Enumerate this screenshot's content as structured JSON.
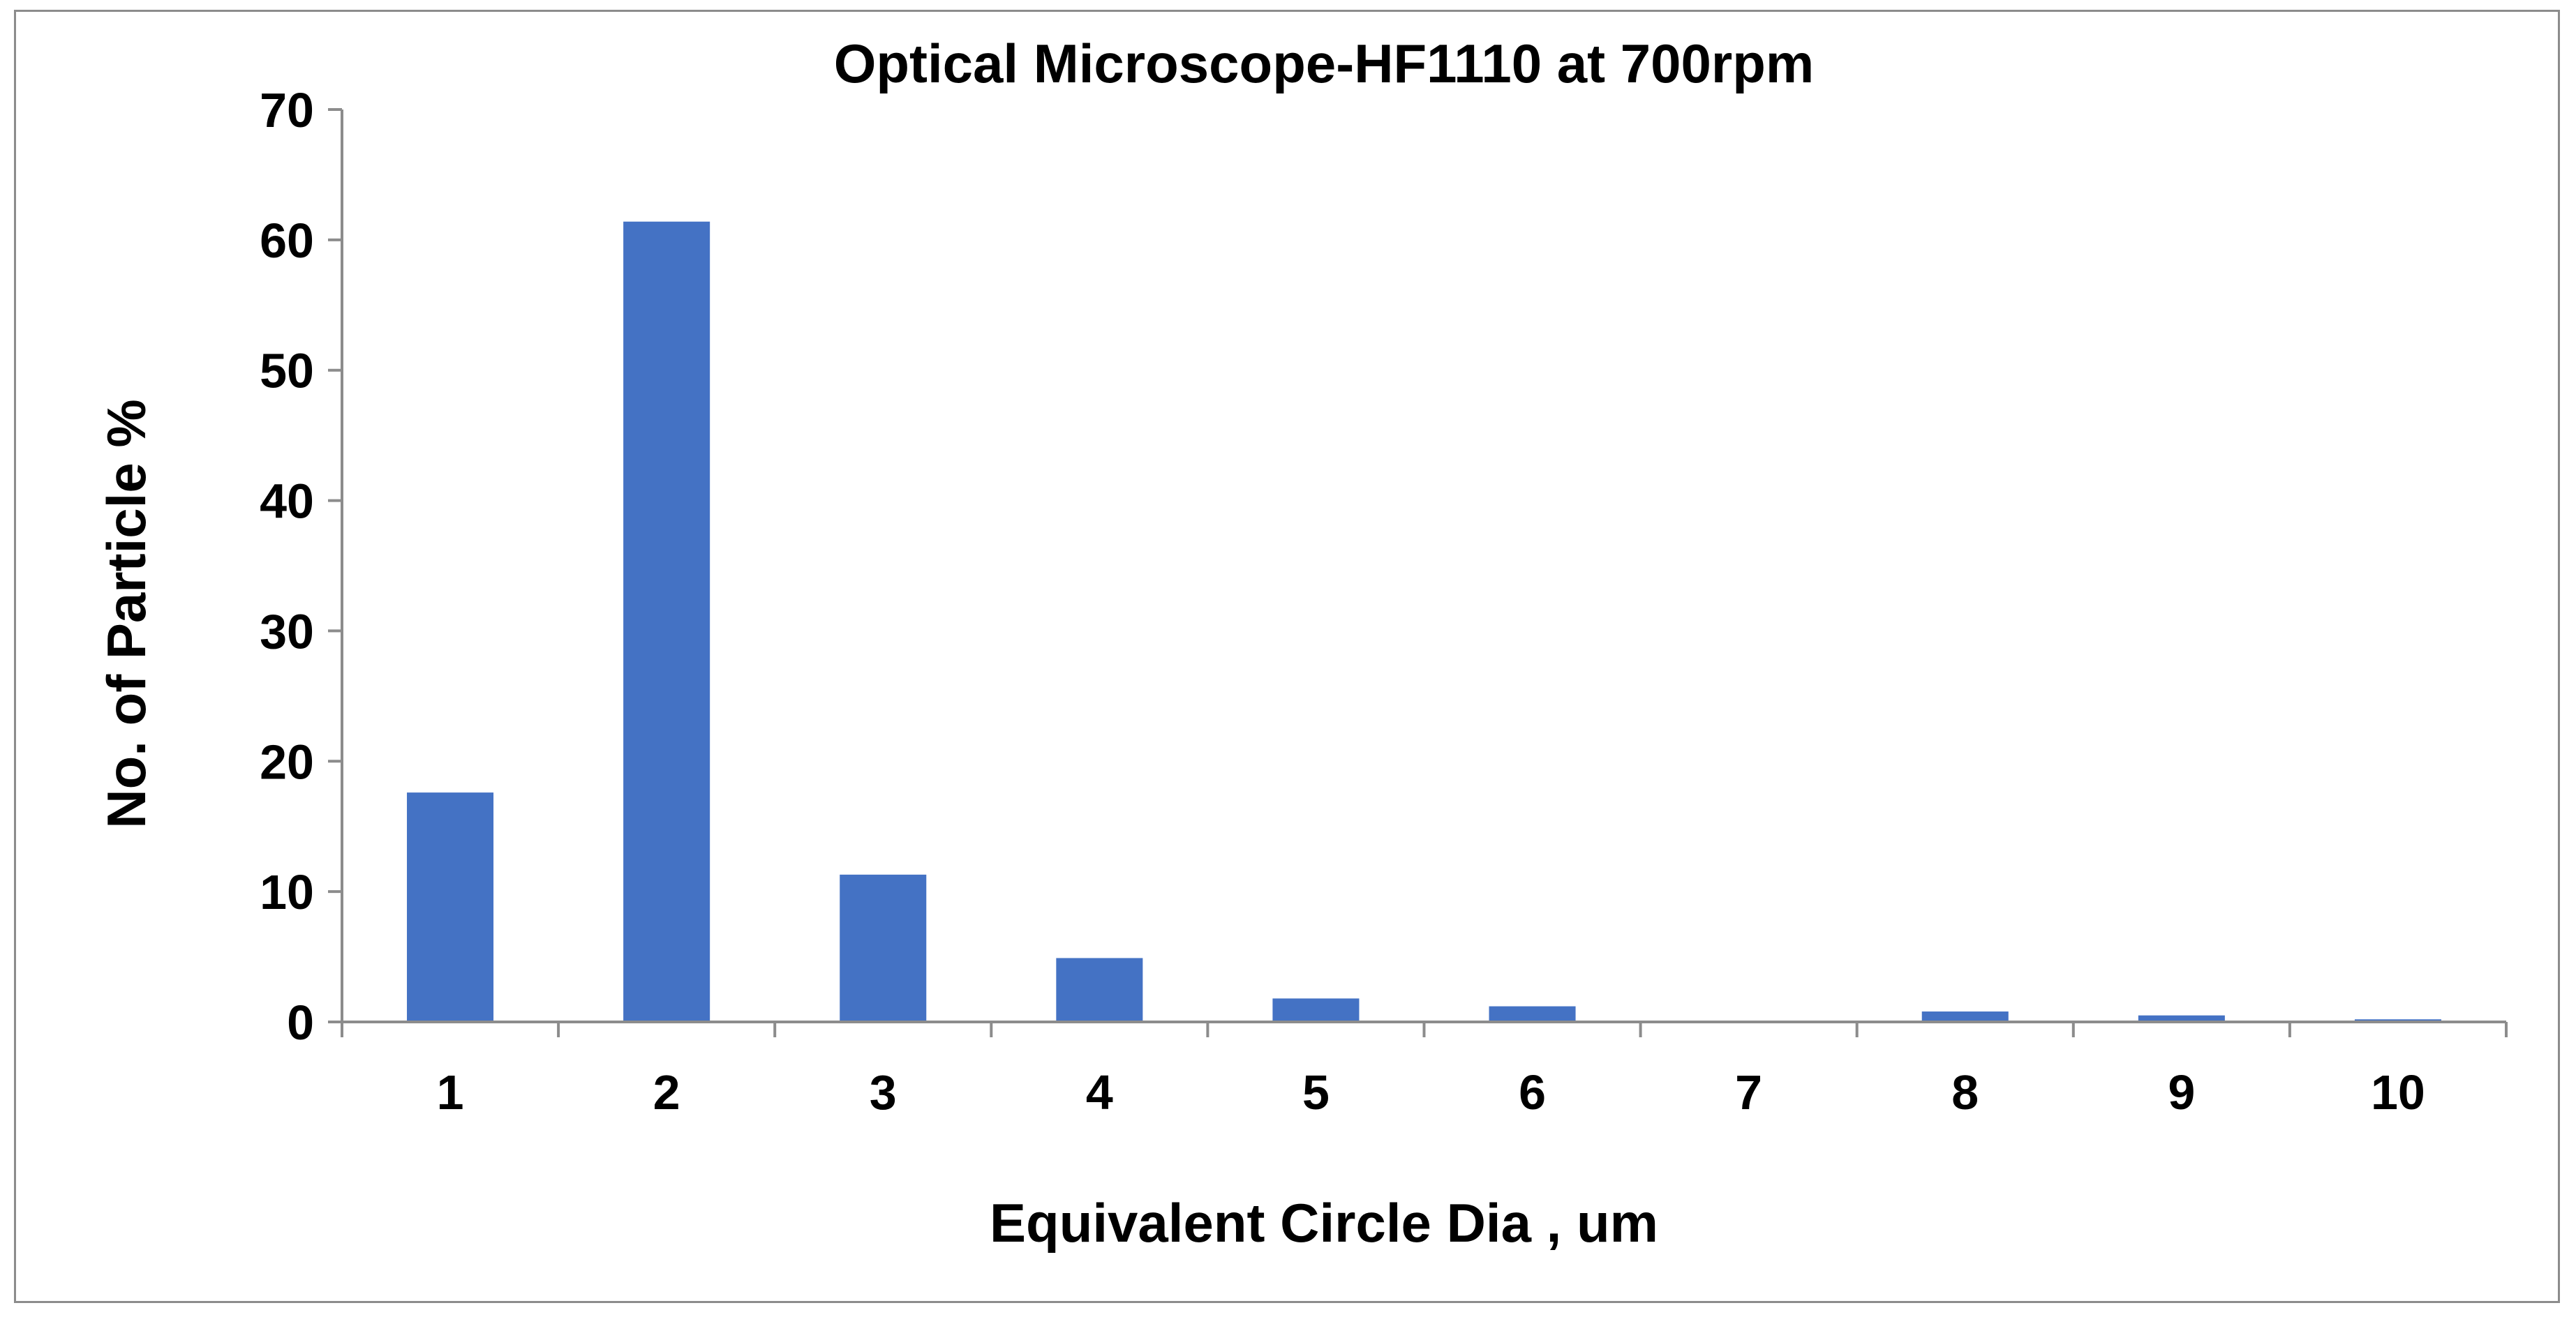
{
  "chart_data": {
    "type": "bar",
    "title": "Optical Microscope-HF1110 at 700rpm",
    "xlabel": "Equivalent Circle Dia , um",
    "ylabel": "No. of Particle %",
    "categories": [
      "1",
      "2",
      "3",
      "4",
      "5",
      "6",
      "7",
      "8",
      "9",
      "10"
    ],
    "values": [
      17.6,
      61.4,
      11.3,
      4.9,
      1.8,
      1.2,
      0,
      0.8,
      0.5,
      0.2
    ],
    "ylim": [
      0,
      70
    ],
    "yticks": [
      "0",
      "10",
      "20",
      "30",
      "40",
      "50",
      "60",
      "70"
    ],
    "grid": false,
    "legend": "none",
    "bar_color": "#4472c4",
    "axis_color": "#8c8c8c"
  }
}
